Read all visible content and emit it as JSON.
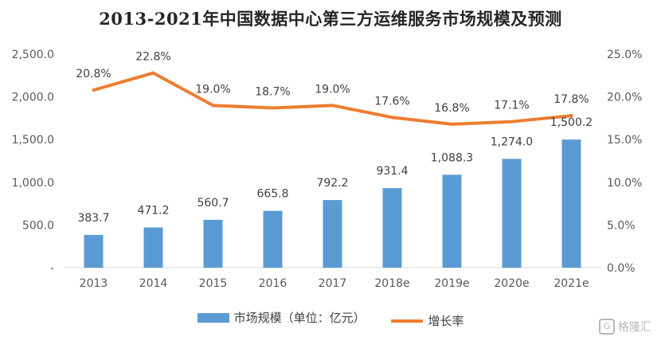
{
  "chart_data": {
    "type": "bar",
    "title": "2013-2021年中国数据中心第三方运维服务市场规模及预测",
    "categories": [
      "2013",
      "2014",
      "2015",
      "2016",
      "2017",
      "2018e",
      "2019e",
      "2020e",
      "2021e"
    ],
    "series": [
      {
        "name": "市场规模（单位：亿元）",
        "type": "bar",
        "axis": "left",
        "color": "#5B9BD5",
        "values": [
          383.7,
          471.2,
          560.7,
          665.8,
          792.2,
          931.4,
          1088.3,
          1274.0,
          1500.2
        ],
        "labels": [
          "383.7",
          "471.2",
          "560.7",
          "665.8",
          "792.2",
          "931.4",
          "1,088.3",
          "1,274.0",
          "1,500.2"
        ]
      },
      {
        "name": "增长率",
        "type": "line",
        "axis": "right",
        "color": "#ED7D31",
        "values": [
          20.8,
          22.8,
          19.0,
          18.7,
          19.0,
          17.6,
          16.8,
          17.1,
          17.8
        ],
        "labels": [
          "20.8%",
          "22.8%",
          "19.0%",
          "18.7%",
          "19.0%",
          "17.6%",
          "16.8%",
          "17.1%",
          "17.8%"
        ]
      }
    ],
    "y_left": {
      "ylim": [
        0,
        2500
      ],
      "ticks": [
        0,
        500,
        1000,
        1500,
        2000,
        2500
      ],
      "tick_labels": [
        "-",
        "500.0",
        "1,000.0",
        "1,500.0",
        "2,000.0",
        "2,500.0"
      ]
    },
    "y_right": {
      "ylim": [
        0,
        25
      ],
      "ticks": [
        0,
        5,
        10,
        15,
        20,
        25
      ],
      "tick_labels": [
        "0.0%",
        "5.0%",
        "10.0%",
        "15.0%",
        "20.0%",
        "25.0%"
      ]
    },
    "grid": false,
    "legend": "bottom"
  },
  "watermark": {
    "icon": "gelonghui-logo-icon",
    "text": "格隆汇"
  }
}
